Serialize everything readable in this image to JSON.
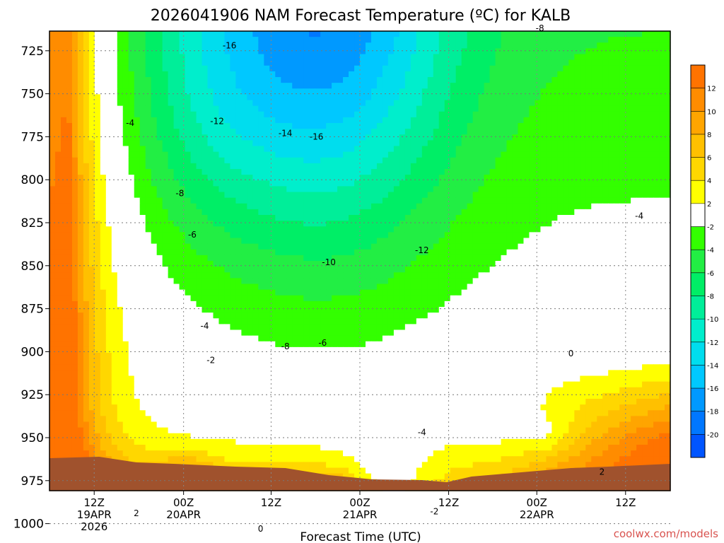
{
  "chart_data": {
    "type": "heatmap",
    "title": "2026041906 NAM Forecast Temperature (ºC) for KALB",
    "xlabel": "Forecast Time (UTC)",
    "ylabel": "",
    "y_ticks": [
      "725",
      "750",
      "775",
      "800",
      "825",
      "850",
      "875",
      "900",
      "925",
      "950",
      "975",
      "1000"
    ],
    "x_ticks": [
      {
        "l1": "12Z",
        "l2": "19APR",
        "l3": "2026"
      },
      {
        "l1": "00Z",
        "l2": "20APR",
        "l3": ""
      },
      {
        "l1": "12Z",
        "l2": "",
        "l3": ""
      },
      {
        "l1": "00Z",
        "l2": "21APR",
        "l3": ""
      },
      {
        "l1": "12Z",
        "l2": "",
        "l3": ""
      },
      {
        "l1": "00Z",
        "l2": "22APR",
        "l3": ""
      },
      {
        "l1": "12Z",
        "l2": "",
        "l3": ""
      }
    ],
    "colorbar": {
      "labels": [
        "12",
        "10",
        "8",
        "6",
        "4",
        "2",
        "-2",
        "-4",
        "-6",
        "-8",
        "-10",
        "-12",
        "-14",
        "-16",
        "-18",
        "-20"
      ],
      "bands": [
        {
          "value": 13,
          "color": "#ff7300"
        },
        {
          "value": 11,
          "color": "#ff8c00"
        },
        {
          "value": 9,
          "color": "#ffa500"
        },
        {
          "value": 7,
          "color": "#ffc000"
        },
        {
          "value": 5,
          "color": "#ffd700"
        },
        {
          "value": 3,
          "color": "#ffff00"
        },
        {
          "value": 0,
          "color": "#ffffff"
        },
        {
          "value": -3,
          "color": "#33ff00"
        },
        {
          "value": -5,
          "color": "#22ee44"
        },
        {
          "value": -7,
          "color": "#00ee66"
        },
        {
          "value": -9,
          "color": "#00ee99"
        },
        {
          "value": -11,
          "color": "#00eecc"
        },
        {
          "value": -13,
          "color": "#00ddee"
        },
        {
          "value": -15,
          "color": "#00c8ff"
        },
        {
          "value": -17,
          "color": "#0099ff"
        },
        {
          "value": -19,
          "color": "#0077ff"
        },
        {
          "value": -21,
          "color": "#0055ff"
        }
      ]
    },
    "contour_labels": [
      {
        "text": "-16",
        "t": 0.29,
        "p": 722
      },
      {
        "text": "-8",
        "t": 0.79,
        "p": 712
      },
      {
        "text": "-4",
        "t": 0.13,
        "p": 767
      },
      {
        "text": "-12",
        "t": 0.27,
        "p": 766
      },
      {
        "text": "-14",
        "t": 0.38,
        "p": 773
      },
      {
        "text": "-16",
        "t": 0.43,
        "p": 775
      },
      {
        "text": "-8",
        "t": 0.21,
        "p": 808
      },
      {
        "text": "-6",
        "t": 0.23,
        "p": 832
      },
      {
        "text": "-4",
        "t": 0.95,
        "p": 821
      },
      {
        "text": "-12",
        "t": 0.6,
        "p": 841
      },
      {
        "text": "-10",
        "t": 0.45,
        "p": 848
      },
      {
        "text": "-4",
        "t": 0.25,
        "p": 885
      },
      {
        "text": "-8",
        "t": 0.38,
        "p": 897
      },
      {
        "text": "-6",
        "t": 0.44,
        "p": 895
      },
      {
        "text": "-2",
        "t": 0.26,
        "p": 905
      },
      {
        "text": "0",
        "t": 0.84,
        "p": 901
      },
      {
        "text": "-4",
        "t": 0.6,
        "p": 947
      },
      {
        "text": "2",
        "t": 0.89,
        "p": 970
      },
      {
        "text": "-2",
        "t": 0.62,
        "p": 993
      },
      {
        "text": "2",
        "t": 0.14,
        "p": 994
      },
      {
        "text": "0",
        "t": 0.34,
        "p": 1003
      }
    ]
  },
  "credit": "coolwx.com/models"
}
